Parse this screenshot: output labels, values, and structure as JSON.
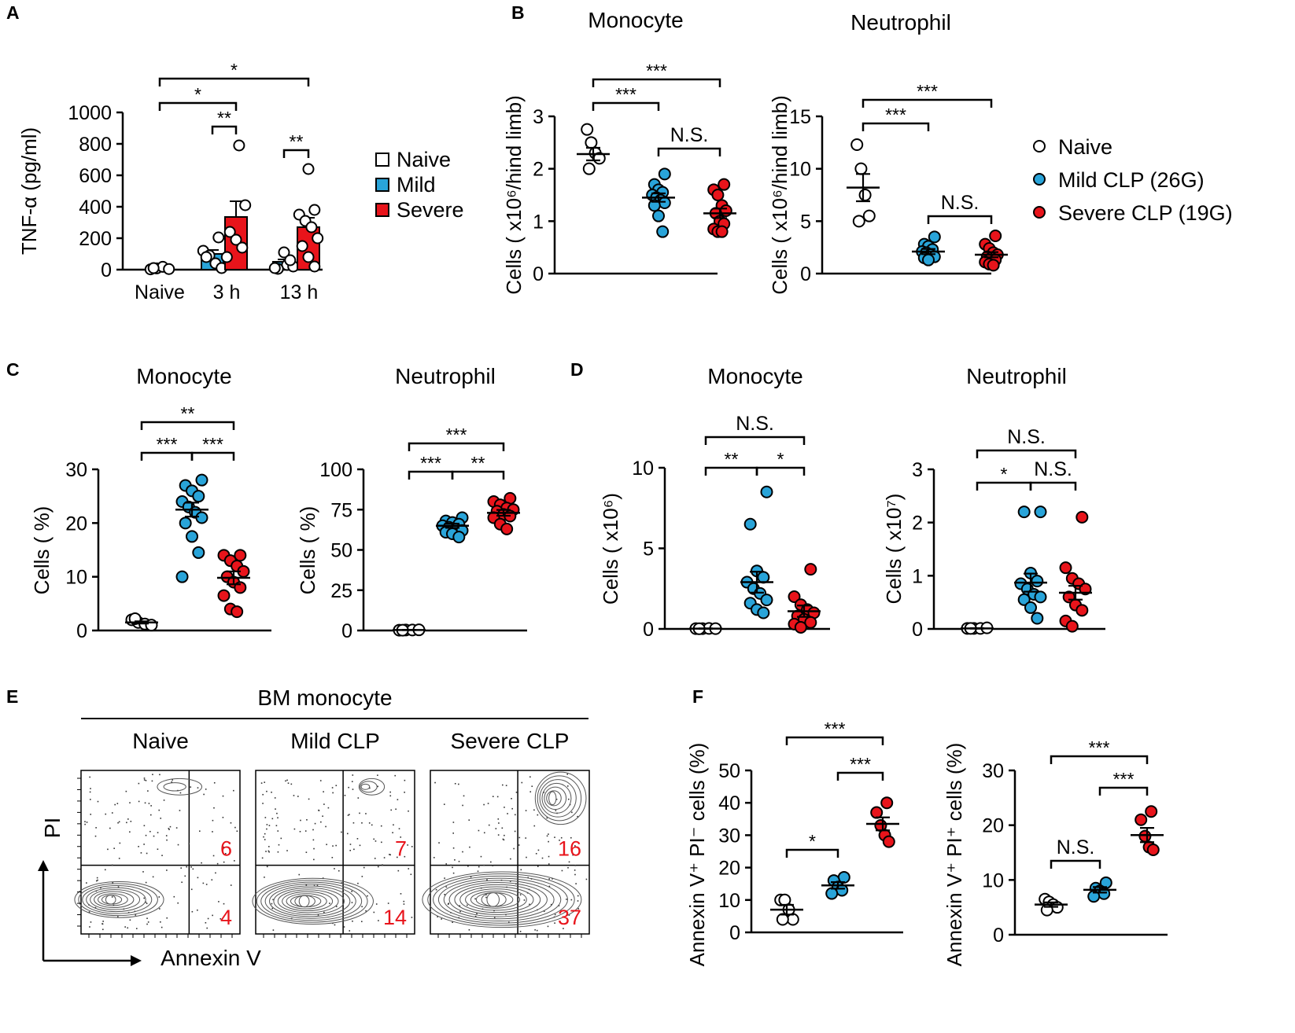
{
  "colors": {
    "naive": "#ffffff",
    "mild": "#29a4d9",
    "severe": "#e8141b",
    "quadrant_text": "#e8141b",
    "contour": "#555555"
  },
  "legend_A": {
    "items": [
      {
        "label": "Naive",
        "color": "#ffffff"
      },
      {
        "label": "Mild",
        "color": "#29a4d9"
      },
      {
        "label": "Severe",
        "color": "#e8141b"
      }
    ]
  },
  "legend_B": {
    "items": [
      {
        "label": "Naive",
        "color": "#ffffff"
      },
      {
        "label": "Mild CLP (26G)",
        "color": "#29a4d9"
      },
      {
        "label": "Severe CLP (19G)",
        "color": "#e8141b"
      }
    ]
  },
  "chart_data": [
    {
      "id": "A",
      "panel_label": "A",
      "type": "bar",
      "title": "",
      "ylabel": "TNF-α (pg/ml)",
      "xlabel": "",
      "ylim": [
        0,
        1000
      ],
      "yticks": [
        "0",
        "200",
        "400",
        "600",
        "800",
        "1000"
      ],
      "categories": [
        "Naive",
        "3 h",
        "13 h"
      ],
      "series": [
        {
          "name": "Naive",
          "values": [
            5,
            null,
            null
          ],
          "sem": [
            1,
            null,
            null
          ],
          "points": [
            [
              2,
              8,
              18,
              4,
              10
            ],
            [],
            []
          ]
        },
        {
          "name": "Mild",
          "values": [
            null,
            100,
            50
          ],
          "sem": [
            null,
            25,
            15
          ],
          "points": [
            [],
            [
              205,
              120,
              90,
              40,
              10,
              80
            ],
            [
              30,
              20,
              5,
              110,
              60,
              10
            ]
          ]
        },
        {
          "name": "Severe",
          "values": [
            null,
            335,
            270
          ],
          "sem": [
            null,
            100,
            60
          ],
          "points": [
            [],
            [
              790,
              410,
              240,
              190,
              140,
              80
            ],
            [
              640,
              380,
              350,
              310,
              270,
              200,
              150,
              80,
              20
            ]
          ]
        }
      ],
      "significance": [
        {
          "label": "*",
          "from": "Naive:Naive",
          "to": "13 h:Severe"
        },
        {
          "label": "*",
          "from": "Naive:Naive",
          "to": "3 h:Mild"
        },
        {
          "label": "**",
          "from": "3 h:Mild",
          "to": "3 h:Severe"
        },
        {
          "label": "**",
          "from": "13 h:Mild",
          "to": "13 h:Severe"
        }
      ]
    },
    {
      "id": "B1",
      "panel_label": "B",
      "type": "scatter",
      "title": "Monocyte",
      "ylabel": "Cells ( x10⁶/hind limb)",
      "ylim": [
        0,
        3
      ],
      "yticks": [
        "0",
        "1",
        "2",
        "3"
      ],
      "categories": [
        "Naive",
        "Mild CLP (26G)",
        "Severe CLP (19G)"
      ],
      "means": [
        2.28,
        1.45,
        1.15
      ],
      "sem": [
        0.12,
        0.08,
        0.09
      ],
      "points": [
        [
          2.75,
          2.5,
          2.3,
          2.2,
          2.0
        ],
        [
          1.9,
          1.7,
          1.6,
          1.55,
          1.5,
          1.45,
          1.4,
          1.35,
          1.3,
          1.1,
          0.8
        ],
        [
          1.7,
          1.6,
          1.5,
          1.3,
          1.2,
          1.15,
          1.0,
          0.95,
          0.85,
          0.8,
          0.8
        ]
      ],
      "significance": [
        {
          "label": "***",
          "from": 0,
          "to": 2
        },
        {
          "label": "***",
          "from": 0,
          "to": 1
        },
        {
          "label": "N.S.",
          "from": 1,
          "to": 2
        }
      ]
    },
    {
      "id": "B2",
      "panel_label": "",
      "type": "scatter",
      "title": "Neutrophil",
      "ylabel": "Cells ( x10⁶/hind limb)",
      "ylim": [
        0,
        15
      ],
      "yticks": [
        "0",
        "5",
        "10",
        "15"
      ],
      "categories": [
        "Naive",
        "Mild CLP (26G)",
        "Severe CLP (19G)"
      ],
      "means": [
        8.2,
        2.1,
        1.8
      ],
      "sem": [
        1.3,
        0.25,
        0.25
      ],
      "points": [
        [
          12.3,
          10.0,
          7.5,
          5.5,
          5.0
        ],
        [
          3.5,
          2.8,
          2.6,
          2.3,
          2.1,
          2.0,
          1.8,
          1.6,
          1.5,
          1.3
        ],
        [
          3.6,
          2.8,
          2.4,
          2.0,
          1.8,
          1.6,
          1.5,
          1.3,
          1.1,
          0.9,
          0.8
        ]
      ],
      "significance": [
        {
          "label": "***",
          "from": 0,
          "to": 2
        },
        {
          "label": "***",
          "from": 0,
          "to": 1
        },
        {
          "label": "N.S.",
          "from": 1,
          "to": 2
        }
      ]
    },
    {
      "id": "C1",
      "panel_label": "C",
      "type": "scatter",
      "title": "Monocyte",
      "ylabel": "Cells ( %)",
      "ylim": [
        0,
        30
      ],
      "yticks": [
        "0",
        "10",
        "20",
        "30"
      ],
      "categories": [
        "Naive",
        "Mild CLP (26G)",
        "Severe CLP (19G)"
      ],
      "means": [
        1.5,
        22.5,
        9.8
      ],
      "sem": [
        0.2,
        1.3,
        1.2
      ],
      "points": [
        [
          2.0,
          1.5,
          1.2,
          1.0,
          2.2
        ],
        [
          28,
          27,
          26,
          25,
          24,
          23,
          22,
          21,
          20,
          17.5,
          14.5,
          10
        ],
        [
          14,
          14,
          13,
          12,
          11,
          10,
          9,
          8,
          6.5,
          4,
          3.5
        ]
      ],
      "significance": [
        {
          "label": "**",
          "from": 0,
          "to": 2
        },
        {
          "label": "***",
          "from": 0,
          "to": 1
        },
        {
          "label": "***",
          "from": 1,
          "to": 2
        }
      ]
    },
    {
      "id": "C2",
      "panel_label": "",
      "type": "scatter",
      "title": "Neutrophil",
      "ylabel": "Cells ( %)",
      "ylim": [
        0,
        100
      ],
      "yticks": [
        "0",
        "25",
        "50",
        "75",
        "100"
      ],
      "categories": [
        "Naive",
        "Mild CLP (26G)",
        "Severe CLP (19G)"
      ],
      "means": [
        0.3,
        65,
        73
      ],
      "sem": [
        0.05,
        1.3,
        1.8
      ],
      "points": [
        [
          0.2,
          0.3,
          0.3,
          0.4,
          0.2
        ],
        [
          70,
          68,
          67,
          66,
          65,
          64,
          63,
          62,
          61,
          60,
          58
        ],
        [
          82,
          80,
          78,
          76,
          75,
          74,
          72,
          71,
          70,
          66,
          63
        ]
      ],
      "significance": [
        {
          "label": "***",
          "from": 0,
          "to": 2
        },
        {
          "label": "***",
          "from": 0,
          "to": 1
        },
        {
          "label": "**",
          "from": 1,
          "to": 2
        }
      ]
    },
    {
      "id": "D1",
      "panel_label": "D",
      "type": "scatter",
      "title": "Monocyte",
      "ylabel": "Cells ( x10⁶)",
      "ylim": [
        0,
        10
      ],
      "yticks": [
        "0",
        "5",
        "10"
      ],
      "categories": [
        "Naive",
        "Mild CLP (26G)",
        "Severe CLP (19G)"
      ],
      "means": [
        0.02,
        2.9,
        1.1
      ],
      "sem": [
        0.01,
        0.65,
        0.35
      ],
      "points": [
        [
          0.02,
          0.02,
          0.03,
          0.02,
          0.01
        ],
        [
          8.5,
          6.5,
          3.6,
          3.2,
          2.9,
          2.5,
          2.2,
          1.8,
          1.6,
          1.2,
          1.0
        ],
        [
          3.7,
          2.0,
          1.5,
          1.2,
          1.0,
          0.8,
          0.6,
          0.4,
          0.3,
          0.1
        ]
      ],
      "significance": [
        {
          "label": "N.S.",
          "from": 0,
          "to": 2
        },
        {
          "label": "**",
          "from": 0,
          "to": 1
        },
        {
          "label": "*",
          "from": 1,
          "to": 2
        }
      ]
    },
    {
      "id": "D2",
      "panel_label": "",
      "type": "scatter",
      "title": "Neutrophil",
      "ylabel": "Cells ( x10⁷)",
      "ylim": [
        0,
        3
      ],
      "yticks": [
        "0",
        "1",
        "2",
        "3"
      ],
      "categories": [
        "Naive",
        "Mild CLP (26G)",
        "Severe CLP (19G)"
      ],
      "means": [
        0.01,
        0.87,
        0.68
      ],
      "sem": [
        0.005,
        0.17,
        0.13
      ],
      "points": [
        [
          0.01,
          0.01,
          0.01,
          0.02,
          0.01
        ],
        [
          2.2,
          2.2,
          1.05,
          0.9,
          0.85,
          0.75,
          0.65,
          0.6,
          0.55,
          0.4,
          0.2
        ],
        [
          2.1,
          1.15,
          0.95,
          0.85,
          0.75,
          0.6,
          0.45,
          0.35,
          0.15,
          0.05
        ]
      ],
      "significance": [
        {
          "label": "N.S.",
          "from": 0,
          "to": 2
        },
        {
          "label": "*",
          "from": 0,
          "to": 1
        },
        {
          "label": "N.S.",
          "from": 1,
          "to": 2
        }
      ]
    },
    {
      "id": "F1",
      "panel_label": "F",
      "type": "scatter",
      "title": "",
      "ylabel": "Annexin V⁺ PI⁻ cells (%)",
      "ylim": [
        0,
        50
      ],
      "yticks": [
        "0",
        "10",
        "20",
        "30",
        "40",
        "50"
      ],
      "categories": [
        "Naive",
        "Mild CLP (26G)",
        "Severe CLP (19G)"
      ],
      "means": [
        7,
        14.5,
        33.5
      ],
      "sem": [
        1.5,
        1.0,
        2.0
      ],
      "points": [
        [
          10,
          10,
          7,
          4,
          4
        ],
        [
          17,
          16,
          14,
          13,
          12
        ],
        [
          40,
          37,
          33,
          30,
          28
        ]
      ],
      "significance": [
        {
          "label": "***",
          "from": 0,
          "to": 2
        },
        {
          "label": "***",
          "from": 1,
          "to": 2
        },
        {
          "label": "*",
          "from": 0,
          "to": 1
        }
      ]
    },
    {
      "id": "F2",
      "panel_label": "",
      "type": "scatter",
      "title": "",
      "ylabel": "Annexin V⁺ PI⁺ cells (%)",
      "ylim": [
        0,
        30
      ],
      "yticks": [
        "0",
        "10",
        "20",
        "30"
      ],
      "categories": [
        "Naive",
        "Mild CLP (26G)",
        "Severe CLP (19G)"
      ],
      "means": [
        5.5,
        8.2,
        18.2
      ],
      "sem": [
        0.4,
        0.5,
        1.3
      ],
      "points": [
        [
          6.5,
          6,
          5.5,
          5,
          4.5
        ],
        [
          9.5,
          8.5,
          8,
          7.5,
          7
        ],
        [
          22.5,
          21,
          18,
          16,
          15.5
        ]
      ],
      "significance": [
        {
          "label": "***",
          "from": 0,
          "to": 2
        },
        {
          "label": "***",
          "from": 1,
          "to": 2
        },
        {
          "label": "N.S.",
          "from": 0,
          "to": 1
        }
      ]
    }
  ],
  "panel_E": {
    "panel_label": "E",
    "header": "BM monocyte",
    "x_axis_label": "Annexin V",
    "y_axis_label": "PI",
    "plots": [
      {
        "title": "Naive",
        "upper_right": "6",
        "lower_right": "4"
      },
      {
        "title": "Mild CLP",
        "upper_right": "7",
        "lower_right": "14"
      },
      {
        "title": "Severe CLP",
        "upper_right": "16",
        "lower_right": "37"
      }
    ]
  }
}
